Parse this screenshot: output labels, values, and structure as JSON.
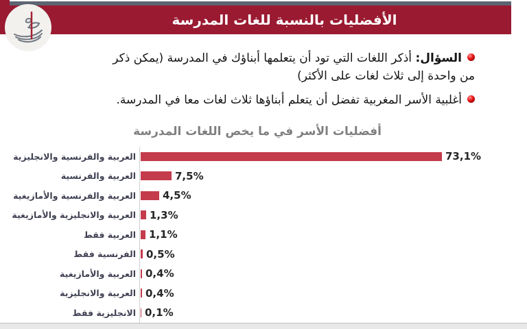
{
  "header": {
    "title": "الأفضليات بالنسبة للغات المدرسة"
  },
  "icons": {
    "logo": "calligraphy-logo",
    "bullet": "red-glossy-ball"
  },
  "bullets": [
    {
      "bold_prefix": "السؤال:",
      "line1": " أذكر اللغات التي تود أن يتعلمها أبناؤك في المدرسة (يمكن ذكر",
      "line2": "من واحدة إلى ثلاث لغات على الأكثر)"
    },
    {
      "text": "أغلبية الأسر المغربية تفضل أن يتعلم أبناؤها ثلاث لغات معا في المدرسة."
    }
  ],
  "chart_data": {
    "type": "bar",
    "orientation": "horizontal",
    "title": "أفضليات الأسر في ما يخص اللغات المدرسة",
    "categories": [
      "العربية والفرنسية والانجليزية",
      "العربية والفرنسية",
      "العربية والفرنسية والأمازيغية",
      "العربية والانجليزية والأمازيغية",
      "العربية فقط",
      "الفرنسية فقط",
      "العربية والأمازيغية",
      "العربية والانجليزية",
      "الانجليزية فقط"
    ],
    "values": [
      73.1,
      7.5,
      4.5,
      1.3,
      1.1,
      0.5,
      0.4,
      0.4,
      0.1
    ],
    "value_labels": [
      "73,1%",
      "7,5%",
      "4,5%",
      "1,3%",
      "1,1%",
      "0,5%",
      "0,4%",
      "0,4%",
      "0,1%"
    ],
    "xlim": [
      0,
      80
    ],
    "grid": false,
    "legend": false,
    "bar_color": "#c43b4c"
  },
  "colors": {
    "header_maroon": "#9a1a31",
    "top_strip_gray": "#5d6472",
    "bar_red": "#c43b4c",
    "chart_title_gray": "#7f7f7f",
    "category_label": "#3f4052",
    "value_label": "#262626"
  }
}
